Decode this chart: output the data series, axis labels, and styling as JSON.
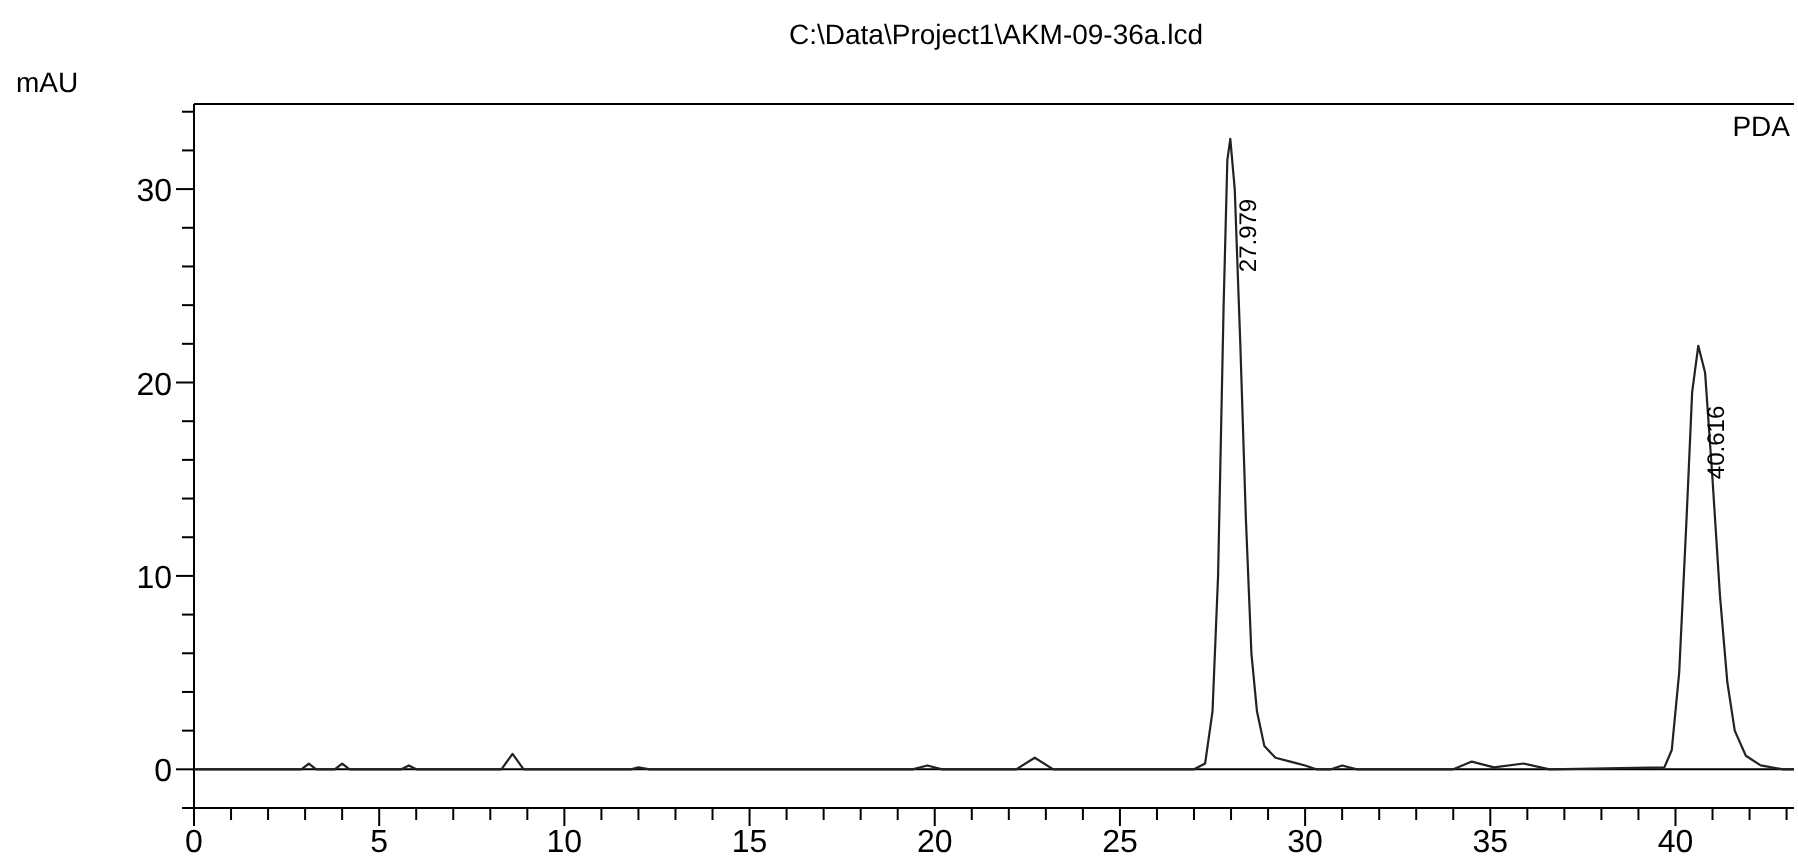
{
  "chart_data": {
    "type": "line",
    "title": "C:\\Data\\Project1\\AKM-09-36a.lcd",
    "ylabel": "mAU",
    "xlim": [
      0,
      43.2
    ],
    "ylim": [
      -2,
      34.4
    ],
    "xticks": [
      0,
      {
        "value": 1,
        "label": null
      },
      {
        "value": 2,
        "label": null
      },
      {
        "value": 3,
        "label": null
      },
      {
        "value": 4,
        "label": null
      },
      5,
      {
        "value": 6,
        "label": null
      },
      {
        "value": 7,
        "label": null
      },
      {
        "value": 8,
        "label": null
      },
      {
        "value": 9,
        "label": null
      },
      10,
      {
        "value": 11,
        "label": null
      },
      {
        "value": 12,
        "label": null
      },
      {
        "value": 13,
        "label": null
      },
      {
        "value": 14,
        "label": null
      },
      15,
      {
        "value": 16,
        "label": null
      },
      {
        "value": 17,
        "label": null
      },
      {
        "value": 18,
        "label": null
      },
      {
        "value": 19,
        "label": null
      },
      20,
      {
        "value": 21,
        "label": null
      },
      {
        "value": 22,
        "label": null
      },
      {
        "value": 23,
        "label": null
      },
      {
        "value": 24,
        "label": null
      },
      25,
      {
        "value": 26,
        "label": null
      },
      {
        "value": 27,
        "label": null
      },
      {
        "value": 28,
        "label": null
      },
      {
        "value": 29,
        "label": null
      },
      30,
      {
        "value": 31,
        "label": null
      },
      {
        "value": 32,
        "label": null
      },
      {
        "value": 33,
        "label": null
      },
      {
        "value": 34,
        "label": null
      },
      35,
      {
        "value": 36,
        "label": null
      },
      {
        "value": 37,
        "label": null
      },
      {
        "value": 38,
        "label": null
      },
      {
        "value": 39,
        "label": null
      },
      40,
      {
        "value": 41,
        "label": null
      },
      {
        "value": 42,
        "label": null
      },
      {
        "value": 43,
        "label": null
      }
    ],
    "yticks": [
      {
        "value": -2,
        "label": null
      },
      0,
      {
        "value": 2,
        "label": null
      },
      {
        "value": 4,
        "label": null
      },
      {
        "value": 6,
        "label": null
      },
      {
        "value": 8,
        "label": null
      },
      10,
      {
        "value": 12,
        "label": null
      },
      {
        "value": 14,
        "label": null
      },
      {
        "value": 16,
        "label": null
      },
      {
        "value": 18,
        "label": null
      },
      20,
      {
        "value": 22,
        "label": null
      },
      {
        "value": 24,
        "label": null
      },
      {
        "value": 26,
        "label": null
      },
      {
        "value": 28,
        "label": null
      },
      30,
      {
        "value": 32,
        "label": null
      },
      {
        "value": 34,
        "label": null
      }
    ],
    "grid": false,
    "marker": "none",
    "line_style": "solid",
    "ref_lines": [
      {
        "axis": "y",
        "value": 0,
        "color": "#000000"
      }
    ],
    "series": [
      {
        "color": "#222222",
        "x": [
          0,
          2.9,
          3.1,
          3.3,
          3.8,
          4.0,
          4.2,
          5.6,
          5.8,
          6.0,
          8.3,
          8.6,
          8.9,
          9.5,
          11.8,
          12.0,
          12.3,
          19.4,
          19.8,
          20.2,
          22.2,
          22.7,
          23.2,
          26.5,
          27.0,
          27.3,
          27.5,
          27.65,
          27.8,
          27.9,
          27.98,
          28.1,
          28.25,
          28.4,
          28.55,
          28.7,
          28.9,
          29.2,
          29.6,
          30.0,
          30.3,
          30.7,
          31.0,
          31.4,
          34.0,
          34.5,
          35.1,
          35.9,
          36.6,
          39.7,
          39.9,
          40.1,
          40.3,
          40.45,
          40.616,
          40.8,
          41.0,
          41.2,
          41.4,
          41.6,
          41.9,
          42.3,
          42.9,
          43.2
        ],
        "values": [
          0,
          0,
          0.3,
          0,
          0,
          0.3,
          0,
          0,
          0.2,
          0,
          0,
          0.8,
          0,
          0,
          0,
          0.1,
          0,
          0,
          0.2,
          0,
          0,
          0.6,
          0,
          0,
          0,
          0.3,
          3,
          10,
          24,
          31.5,
          32.6,
          30,
          22,
          13,
          6,
          3,
          1.2,
          0.6,
          0.4,
          0.2,
          0,
          0,
          0.2,
          0,
          0,
          0.4,
          0.1,
          0.3,
          0,
          0.1,
          1,
          5,
          13,
          19.5,
          21.9,
          20.5,
          15,
          9,
          4.5,
          2,
          0.7,
          0.2,
          0,
          0
        ]
      }
    ],
    "annotations": [
      {
        "text": "27.979",
        "x": 27.979,
        "y": 32.6
      },
      {
        "text": "40.616",
        "x": 40.616,
        "y": 21.9
      },
      "PDA"
    ]
  }
}
